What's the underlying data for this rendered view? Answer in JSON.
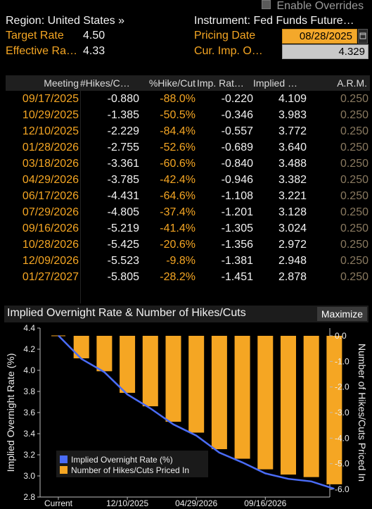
{
  "header": {
    "enable_overrides": "Enable Overrides",
    "region": "Region: United States »",
    "instrument": "Instrument: Fed Funds Future…",
    "target_rate_label": "Target Rate",
    "target_rate_value": "4.50",
    "effective_rate_label": "Effective Ra…",
    "effective_rate_value": "4.33",
    "pricing_date_label": "Pricing Date",
    "pricing_date_value": "08/28/2025",
    "cur_imp_label": "Cur. Imp. O…",
    "cur_imp_value": "4.329"
  },
  "table": {
    "columns": [
      "Meeting",
      "#Hikes/C…",
      "%Hike/Cut",
      "Imp. Rat…",
      "Implied …",
      "A.R.M."
    ],
    "rows": [
      [
        "09/17/2025",
        "-0.880",
        "-88.0%",
        "-0.220",
        "4.109",
        "0.250"
      ],
      [
        "10/29/2025",
        "-1.385",
        "-50.5%",
        "-0.346",
        "3.983",
        "0.250"
      ],
      [
        "12/10/2025",
        "-2.229",
        "-84.4%",
        "-0.557",
        "3.772",
        "0.250"
      ],
      [
        "01/28/2026",
        "-2.755",
        "-52.6%",
        "-0.689",
        "3.640",
        "0.250"
      ],
      [
        "03/18/2026",
        "-3.361",
        "-60.6%",
        "-0.840",
        "3.488",
        "0.250"
      ],
      [
        "04/29/2026",
        "-3.785",
        "-42.4%",
        "-0.946",
        "3.382",
        "0.250"
      ],
      [
        "06/17/2026",
        "-4.431",
        "-64.6%",
        "-1.108",
        "3.221",
        "0.250"
      ],
      [
        "07/29/2026",
        "-4.805",
        "-37.4%",
        "-1.201",
        "3.128",
        "0.250"
      ],
      [
        "09/16/2026",
        "-5.219",
        "-41.4%",
        "-1.305",
        "3.024",
        "0.250"
      ],
      [
        "10/28/2026",
        "-5.425",
        "-20.6%",
        "-1.356",
        "2.972",
        "0.250"
      ],
      [
        "12/09/2026",
        "-5.523",
        "-9.8%",
        "-1.381",
        "2.948",
        "0.250"
      ],
      [
        "01/27/2027",
        "-5.805",
        "-28.2%",
        "-1.451",
        "2.878",
        "0.250"
      ]
    ]
  },
  "chart_panel": {
    "title": "Implied Overnight Rate & Number of Hikes/Cuts",
    "maximize_label": "Maximize"
  },
  "chart_data": {
    "type": "bar",
    "categories": [
      "Current",
      "09/17/2025",
      "10/29/2025",
      "12/10/2025",
      "01/28/2026",
      "03/18/2026",
      "04/29/2026",
      "06/17/2026",
      "07/29/2026",
      "09/16/2026",
      "10/28/2026",
      "12/09/2026",
      "01/27/2027"
    ],
    "x_tick_labels": [
      "Current",
      "12/10/2025",
      "04/29/2026",
      "09/16/2026"
    ],
    "series": [
      {
        "name": "Implied Overnight Rate (%)",
        "type": "line",
        "axis": "left",
        "color": "#4a6cf7",
        "values": [
          4.329,
          4.109,
          3.983,
          3.772,
          3.64,
          3.488,
          3.382,
          3.221,
          3.128,
          3.024,
          2.972,
          2.948,
          2.878
        ]
      },
      {
        "name": "Number of Hikes/Cuts Priced In",
        "type": "bar",
        "axis": "right",
        "color": "#f5a623",
        "values": [
          0,
          -0.88,
          -1.385,
          -2.229,
          -2.755,
          -3.361,
          -3.785,
          -4.431,
          -4.805,
          -5.219,
          -5.425,
          -5.523,
          -5.805
        ]
      }
    ],
    "ylabel": "Implied Overnight Rate (%)",
    "ylabel_right": "Number of Hikes/Cuts Priced In",
    "ylim": [
      2.8,
      4.4
    ],
    "yticks": [
      "4.4",
      "4.2",
      "4.0",
      "3.8",
      "3.6",
      "3.4",
      "3.2",
      "3.0",
      "2.8"
    ],
    "ylim_right": [
      -6.0,
      0.0
    ],
    "yticks_right": [
      "0.0",
      "-1.0",
      "-2.0",
      "-3.0",
      "-4.0",
      "-5.0",
      "-6.0"
    ],
    "legend_position": "bottom-left",
    "grid": false
  }
}
